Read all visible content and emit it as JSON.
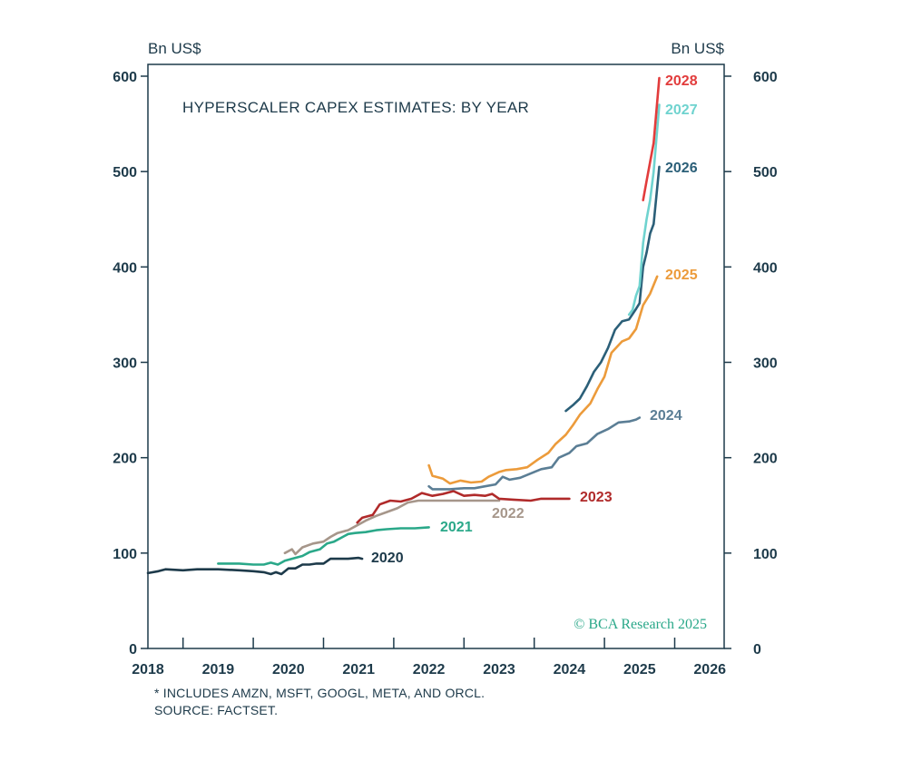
{
  "chart_data": {
    "type": "line",
    "title": "HYPERSCALER CAPEX ESTIMATES: BY YEAR",
    "ylabel_left": "Bn US$",
    "ylabel_right": "Bn US$",
    "ylim": [
      0,
      600
    ],
    "yticks": [
      "0",
      "100",
      "200",
      "300",
      "400",
      "500",
      "600"
    ],
    "yticks_right": [
      "0",
      "100",
      "200",
      "300",
      "400",
      "500",
      "600"
    ],
    "xlim": [
      2018,
      2026.2
    ],
    "xticks": [
      "2018",
      "2019",
      "2020",
      "2021",
      "2022",
      "2023",
      "2024",
      "2025",
      "2026"
    ],
    "grid": false,
    "series": [
      {
        "name": "2020",
        "color": "#1d3a4a",
        "x": [
          2018.0,
          2018.15,
          2018.25,
          2018.5,
          2018.7,
          2019.0,
          2019.3,
          2019.5,
          2019.65,
          2019.75,
          2019.82,
          2019.9,
          2020.0,
          2020.1,
          2020.2,
          2020.3,
          2020.4,
          2020.5,
          2020.6,
          2020.7,
          2020.85,
          2021.0,
          2021.05
        ],
        "y": [
          79,
          81,
          83,
          82,
          83,
          83,
          82,
          81,
          80,
          78,
          80,
          78,
          84,
          84,
          88,
          88,
          89,
          89,
          94,
          94,
          94,
          95,
          94
        ]
      },
      {
        "name": "2021",
        "color": "#2aa889",
        "x": [
          2019.0,
          2019.3,
          2019.5,
          2019.65,
          2019.75,
          2019.85,
          2019.95,
          2020.05,
          2020.2,
          2020.3,
          2020.45,
          2020.55,
          2020.65,
          2020.75,
          2020.85,
          2020.95,
          2021.1,
          2021.25,
          2021.4,
          2021.6,
          2021.8,
          2022.0
        ],
        "y": [
          89,
          89,
          88,
          88,
          90,
          88,
          92,
          94,
          97,
          101,
          104,
          110,
          112,
          116,
          120,
          121,
          122,
          124,
          125,
          126,
          126,
          127
        ]
      },
      {
        "name": "2022",
        "color": "#a6968a",
        "x": [
          2019.95,
          2020.05,
          2020.1,
          2020.2,
          2020.35,
          2020.5,
          2020.6,
          2020.7,
          2020.85,
          2021.0,
          2021.1,
          2021.25,
          2021.4,
          2021.55,
          2021.7,
          2021.85,
          2022.0,
          2022.3,
          2022.6,
          2022.85,
          2023.0
        ],
        "y": [
          100,
          104,
          99,
          106,
          110,
          112,
          117,
          121,
          124,
          130,
          134,
          139,
          143,
          147,
          153,
          155,
          155,
          155,
          155,
          155,
          155
        ]
      },
      {
        "name": "2023",
        "color": "#b02a2a",
        "x": [
          2020.98,
          2021.05,
          2021.2,
          2021.3,
          2021.45,
          2021.6,
          2021.75,
          2021.9,
          2022.05,
          2022.2,
          2022.35,
          2022.5,
          2022.65,
          2022.8,
          2022.9,
          2023.0,
          2023.2,
          2023.45,
          2023.6,
          2023.8,
          2024.0
        ],
        "y": [
          132,
          137,
          140,
          151,
          155,
          154,
          157,
          163,
          160,
          162,
          165,
          160,
          161,
          160,
          162,
          157,
          156,
          155,
          157,
          157,
          157
        ]
      },
      {
        "name": "2024",
        "color": "#5b7e95",
        "x": [
          2022.0,
          2022.05,
          2022.15,
          2022.3,
          2022.5,
          2022.65,
          2022.8,
          2022.95,
          2023.05,
          2023.15,
          2023.3,
          2023.5,
          2023.6,
          2023.75,
          2023.85,
          2024.0,
          2024.1,
          2024.25,
          2024.4,
          2024.55,
          2024.7,
          2024.85,
          2024.95,
          2025.0
        ],
        "y": [
          170,
          167,
          167,
          167,
          168,
          168,
          170,
          172,
          180,
          177,
          179,
          185,
          188,
          190,
          200,
          205,
          212,
          215,
          225,
          230,
          237,
          238,
          240,
          242
        ]
      },
      {
        "name": "2025",
        "color": "#ec9b3b",
        "x": [
          2022.0,
          2022.05,
          2022.2,
          2022.3,
          2022.45,
          2022.6,
          2022.75,
          2022.85,
          2023.0,
          2023.1,
          2023.25,
          2023.4,
          2023.55,
          2023.7,
          2023.8,
          2023.95,
          2024.05,
          2024.15,
          2024.3,
          2024.4,
          2024.5,
          2024.6,
          2024.75,
          2024.85,
          2024.95,
          2025.05,
          2025.15,
          2025.25
        ],
        "y": [
          192,
          181,
          178,
          173,
          176,
          174,
          175,
          180,
          185,
          187,
          188,
          190,
          198,
          205,
          214,
          224,
          234,
          245,
          257,
          272,
          285,
          310,
          322,
          325,
          335,
          360,
          372,
          390
        ]
      },
      {
        "name": "2026",
        "color": "#2b5f78",
        "x": [
          2023.95,
          2024.05,
          2024.15,
          2024.25,
          2024.35,
          2024.45,
          2024.55,
          2024.65,
          2024.75,
          2024.85,
          2024.95,
          2025.0,
          2025.05,
          2025.1,
          2025.15,
          2025.2,
          2025.28
        ],
        "y": [
          249,
          255,
          262,
          275,
          290,
          300,
          315,
          334,
          343,
          345,
          356,
          362,
          400,
          415,
          435,
          445,
          505
        ]
      },
      {
        "name": "2027",
        "color": "#6fd3cf",
        "x": [
          2024.85,
          2024.9,
          2024.95,
          2025.0,
          2025.05,
          2025.1,
          2025.15,
          2025.2,
          2025.28
        ],
        "y": [
          350,
          355,
          370,
          380,
          425,
          450,
          470,
          500,
          570
        ]
      },
      {
        "name": "2028",
        "color": "#e23c3c",
        "x": [
          2025.05,
          2025.1,
          2025.15,
          2025.2,
          2025.28
        ],
        "y": [
          470,
          490,
          510,
          530,
          598
        ]
      }
    ],
    "credit": "© BCA Research 2025"
  },
  "footnotes": {
    "line1": "* INCLUDES AMZN, MSFT, GOOGL, META, AND ORCL.",
    "line2": "SOURCE: FACTSET."
  }
}
